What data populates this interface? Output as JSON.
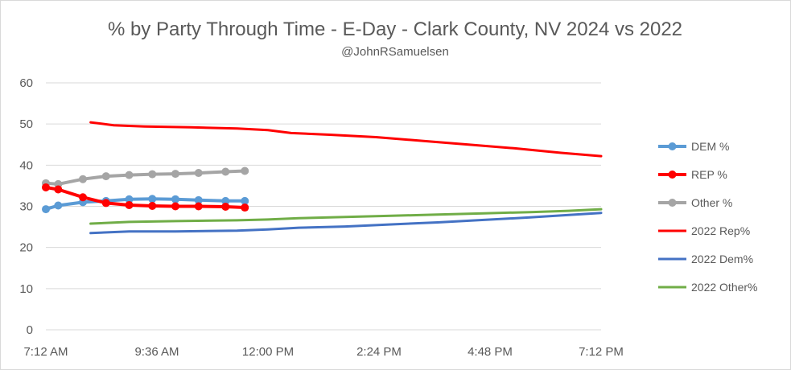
{
  "chart_data": {
    "type": "line",
    "title": "% by Party Through Time - E-Day - Clark County, NV 2024 vs 2022",
    "subtitle": "@JohnRSamuelsen",
    "xlabel": "",
    "ylabel": "",
    "x_range_minutes": [
      432,
      1152
    ],
    "x_ticks": [
      {
        "minutes": 432,
        "label": "7:12 AM"
      },
      {
        "minutes": 576,
        "label": "9:36 AM"
      },
      {
        "minutes": 720,
        "label": "12:00 PM"
      },
      {
        "minutes": 864,
        "label": "2:24 PM"
      },
      {
        "minutes": 1008,
        "label": "4:48 PM"
      },
      {
        "minutes": 1152,
        "label": "7:12 PM"
      }
    ],
    "ylim": [
      0,
      60
    ],
    "y_ticks": [
      0,
      10,
      20,
      30,
      40,
      50,
      60
    ],
    "grid": "horizontal",
    "legend_position": "right",
    "series": [
      {
        "name": "DEM %",
        "color": "#5b9bd5",
        "markers": true,
        "width": 4,
        "x": [
          432,
          448,
          480,
          510,
          540,
          570,
          600,
          630,
          665,
          690
        ],
        "y": [
          29.3,
          30.2,
          31.0,
          31.3,
          31.7,
          31.8,
          31.7,
          31.5,
          31.3,
          31.3
        ]
      },
      {
        "name": "REP %",
        "color": "#ff0000",
        "markers": true,
        "width": 4,
        "x": [
          432,
          448,
          480,
          510,
          540,
          570,
          600,
          630,
          665,
          690
        ],
        "y": [
          34.6,
          34.1,
          32.2,
          30.8,
          30.3,
          30.1,
          30.0,
          30.0,
          29.9,
          29.7
        ]
      },
      {
        "name": "Other %",
        "color": "#a5a5a5",
        "markers": true,
        "width": 4,
        "x": [
          432,
          448,
          480,
          510,
          540,
          570,
          600,
          630,
          665,
          690
        ],
        "y": [
          35.6,
          35.4,
          36.6,
          37.3,
          37.6,
          37.8,
          37.9,
          38.1,
          38.4,
          38.6
        ]
      },
      {
        "name": "2022 Rep%",
        "color": "#ff0000",
        "markers": false,
        "width": 3,
        "x": [
          490,
          520,
          560,
          620,
          680,
          720,
          750,
          800,
          860,
          920,
          980,
          1040,
          1100,
          1152
        ],
        "y": [
          50.4,
          49.7,
          49.4,
          49.2,
          48.9,
          48.5,
          47.8,
          47.4,
          46.8,
          45.9,
          45.0,
          44.1,
          43.0,
          42.2
        ]
      },
      {
        "name": "2022 Dem%",
        "color": "#4472c4",
        "markers": false,
        "width": 3,
        "x": [
          490,
          540,
          600,
          680,
          720,
          760,
          820,
          880,
          940,
          1000,
          1060,
          1110,
          1152
        ],
        "y": [
          23.5,
          23.9,
          23.9,
          24.1,
          24.4,
          24.8,
          25.1,
          25.6,
          26.1,
          26.7,
          27.3,
          27.9,
          28.4
        ]
      },
      {
        "name": "2022 Other%",
        "color": "#70ad47",
        "markers": false,
        "width": 3,
        "x": [
          490,
          540,
          600,
          680,
          720,
          760,
          820,
          880,
          940,
          1000,
          1060,
          1110,
          1152
        ],
        "y": [
          25.8,
          26.2,
          26.4,
          26.6,
          26.8,
          27.1,
          27.4,
          27.7,
          28.0,
          28.3,
          28.6,
          28.9,
          29.3
        ]
      }
    ]
  }
}
